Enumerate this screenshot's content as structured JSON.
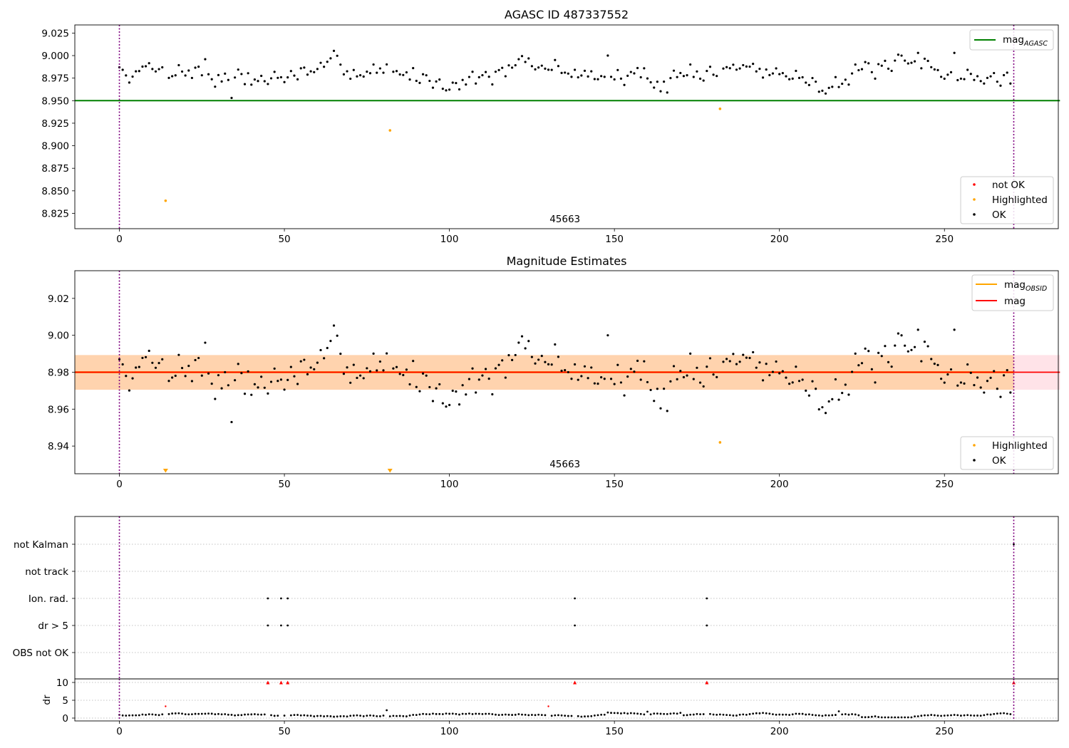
{
  "chart_data": [
    {
      "type": "scatter",
      "title": "AGASC ID 487337552",
      "xlim": [
        -13.5,
        284.5
      ],
      "ylim": [
        8.808,
        9.034
      ],
      "x_ticks": [
        "0",
        "50",
        "100",
        "150",
        "200",
        "250",
        "300"
      ],
      "y_ticks": [
        "8.825",
        "8.850",
        "8.875",
        "8.900",
        "8.925",
        "8.950",
        "8.975",
        "9.000",
        "9.025"
      ],
      "obsid_label": "45663",
      "obsid_boundaries": [
        0,
        271
      ],
      "reference_line": {
        "name": "mag",
        "subscript": "AGASC",
        "value": 8.95,
        "x_range": [
          -13.5,
          285
        ],
        "color": "#008000"
      },
      "highlighted": {
        "x": [
          14,
          82,
          182
        ],
        "y": [
          8.839,
          8.917,
          8.941
        ],
        "color": "#ffa500"
      },
      "ok_points": {
        "color": "#000000",
        "seed": 7,
        "n": 271,
        "mean": 8.98,
        "spread": 0.012,
        "samples": [
          {
            "x": 0,
            "y": 8.987
          },
          {
            "x": 26,
            "y": 8.996
          },
          {
            "x": 34,
            "y": 8.953
          },
          {
            "x": 80,
            "y": 8.981
          },
          {
            "x": 148,
            "y": 9.0
          },
          {
            "x": 166,
            "y": 8.959
          },
          {
            "x": 242,
            "y": 9.003
          },
          {
            "x": 253,
            "y": 9.003
          },
          {
            "x": 270,
            "y": 8.969
          }
        ]
      },
      "legend_top": [
        {
          "label": "mag",
          "subscript": "AGASC",
          "color": "#008000"
        }
      ],
      "legend_bottom": [
        {
          "label": "not OK",
          "color": "#ff0000"
        },
        {
          "label": "Highlighted",
          "color": "#ffa500"
        },
        {
          "label": "OK",
          "color": "#000000"
        }
      ]
    },
    {
      "type": "scatter",
      "title": "Magnitude Estimates",
      "xlim": [
        -13.5,
        284.5
      ],
      "ylim": [
        8.925,
        9.035
      ],
      "x_ticks": [
        "0",
        "50",
        "100",
        "150",
        "200",
        "250",
        "300"
      ],
      "y_ticks": [
        "8.94",
        "8.96",
        "8.98",
        "9.00",
        "9.02"
      ],
      "obsid_label": "45663",
      "obsid_boundaries": [
        0,
        271
      ],
      "bands": [
        {
          "name": "mag",
          "y_range": [
            8.9705,
            8.9893
          ],
          "x_range": [
            -13.5,
            285
          ],
          "color": "#ffc0cb"
        },
        {
          "name": "mag_OBSID",
          "y_range": [
            8.9705,
            8.9893
          ],
          "x_range": [
            -13.5,
            271
          ],
          "color": "#ffa500"
        }
      ],
      "lines": [
        {
          "name": "mag",
          "subscript": "OBSID",
          "value": 8.98,
          "x_range": [
            -13.5,
            271
          ],
          "color": "#ffa500"
        },
        {
          "name": "mag",
          "subscript": "",
          "value": 8.98,
          "x_range": [
            -13.5,
            285
          ],
          "color": "#ff0000"
        }
      ],
      "highlighted": {
        "x": [
          182
        ],
        "y": [
          8.942
        ],
        "color": "#ffa500"
      },
      "off_scale_markers": {
        "x": [
          14,
          82
        ],
        "color": "#ffa500"
      },
      "legend_top": [
        {
          "label": "mag",
          "subscript": "OBSID",
          "color": "#ffa500"
        },
        {
          "label": "mag",
          "subscript": "",
          "color": "#ff0000"
        }
      ],
      "legend_bottom": [
        {
          "label": "Highlighted",
          "color": "#ffa500"
        },
        {
          "label": "OK",
          "color": "#000000"
        }
      ]
    },
    {
      "type": "scatter",
      "title": "",
      "xlim": [
        -13.5,
        284.5
      ],
      "x_ticks": [
        "0",
        "50",
        "100",
        "150",
        "200",
        "250",
        "300"
      ],
      "flag_categories": [
        "not Kalman",
        "not track",
        "Ion. rad.",
        "dr > 5",
        "OBS not OK"
      ],
      "flag_points": [
        {
          "category": "not Kalman",
          "x": [
            271
          ]
        },
        {
          "category": "not track",
          "x": []
        },
        {
          "category": "Ion. rad.",
          "x": [
            45,
            49,
            51,
            138,
            178
          ]
        },
        {
          "category": "dr > 5",
          "x": [
            45,
            49,
            51,
            138,
            178
          ]
        },
        {
          "category": "OBS not OK",
          "x": []
        }
      ],
      "dr_panel": {
        "ylabel": "dr",
        "y_ticks": [
          "0",
          "5",
          "10"
        ],
        "ylim": [
          -0.8,
          11
        ],
        "capped_points": {
          "x": [
            45,
            49,
            51,
            138,
            178,
            271
          ],
          "y": 10,
          "color": "#ff0000"
        },
        "red_points": {
          "x": [
            14,
            130
          ],
          "y": [
            3.3,
            3.3
          ],
          "color": "#ff0000"
        },
        "samples": [
          {
            "x": 0,
            "y": 0.9
          },
          {
            "x": 81,
            "y": 2.2
          },
          {
            "x": 160,
            "y": 1.8
          },
          {
            "x": 218,
            "y": 1.9
          },
          {
            "x": 230,
            "y": 0.3
          },
          {
            "x": 270,
            "y": 1.1
          }
        ]
      }
    }
  ]
}
